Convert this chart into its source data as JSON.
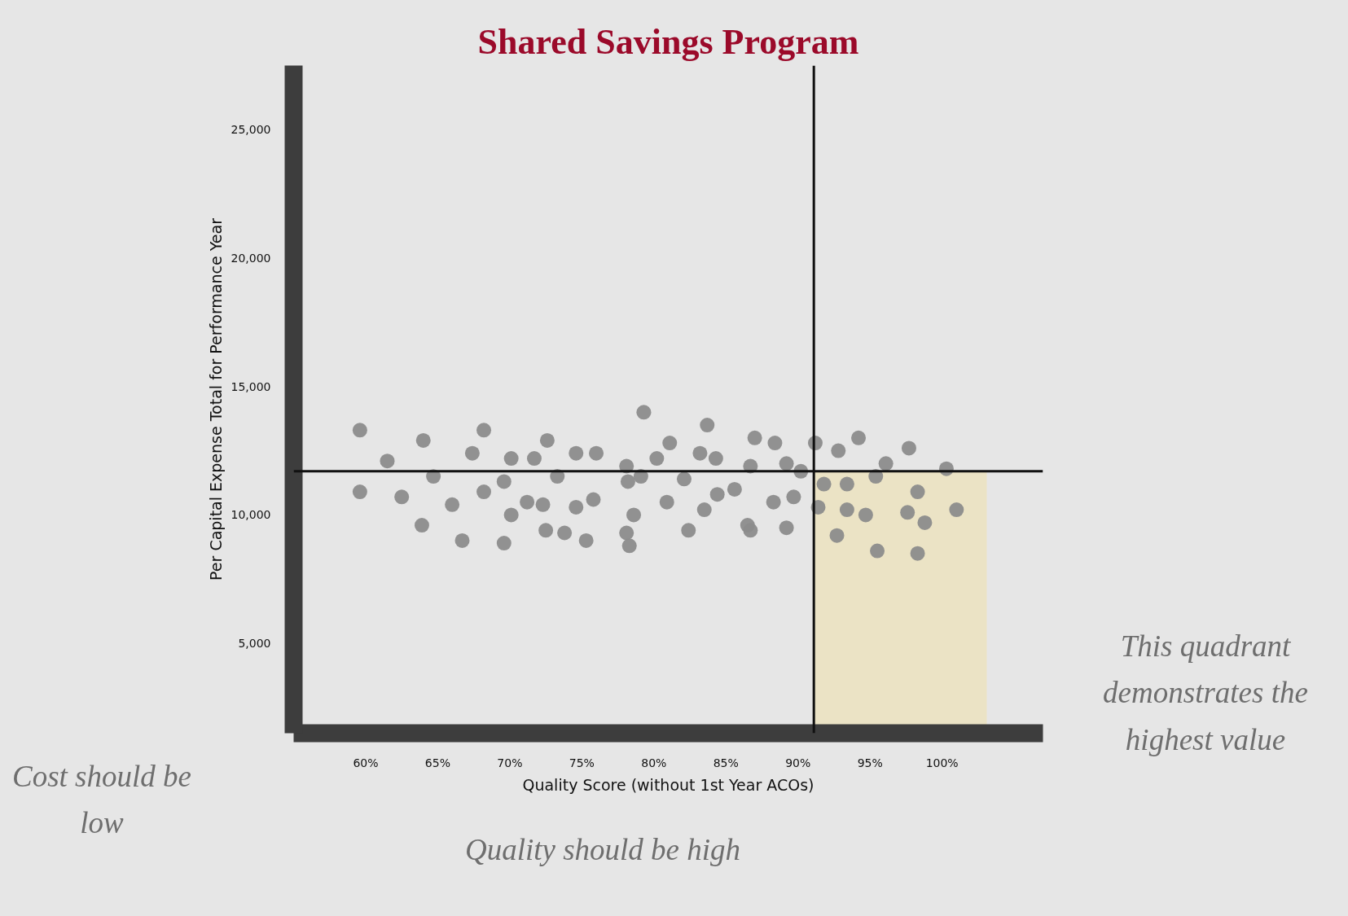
{
  "chart_data": {
    "type": "scatter",
    "title": "Shared Savings Program",
    "xlabel": "Quality Score (without 1st Year ACOs)",
    "ylabel": "Per Capital Expense Total for Performance Year",
    "xlim": [
      55,
      107
    ],
    "ylim": [
      1500,
      27500
    ],
    "xticks": [
      {
        "value": 60,
        "label": "60%"
      },
      {
        "value": 65,
        "label": "65%"
      },
      {
        "value": 70,
        "label": "70%"
      },
      {
        "value": 75,
        "label": "75%"
      },
      {
        "value": 80,
        "label": "80%"
      },
      {
        "value": 85,
        "label": "85%"
      },
      {
        "value": 90,
        "label": "90%"
      },
      {
        "value": 95,
        "label": "95%"
      },
      {
        "value": 100,
        "label": "100%"
      }
    ],
    "yticks": [
      {
        "value": 5000,
        "label": "5,000"
      },
      {
        "value": 10000,
        "label": "10,000"
      },
      {
        "value": 15000,
        "label": "15,000"
      },
      {
        "value": 20000,
        "label": "20,000"
      },
      {
        "value": 25000,
        "label": "25,000"
      }
    ],
    "marker": "circle",
    "series": [
      {
        "color": "#8c8c8c",
        "x": [
          59.6,
          59.6,
          61.5,
          62.5,
          64.0,
          63.9,
          64.7,
          66.0,
          66.7,
          67.4,
          68.2,
          68.2,
          69.6,
          69.6,
          70.1,
          70.1,
          71.2,
          71.7,
          72.3,
          72.5,
          72.6,
          73.3,
          73.8,
          74.6,
          74.6,
          75.3,
          75.8,
          76.0,
          78.1,
          78.2,
          78.1,
          78.3,
          78.6,
          79.1,
          79.3,
          80.2,
          80.9,
          81.1,
          82.1,
          82.4,
          83.2,
          83.5,
          83.7,
          84.3,
          84.4,
          85.6,
          86.7,
          86.5,
          86.7,
          87.0,
          88.3,
          88.4,
          89.2,
          89.2,
          89.7,
          90.2,
          91.2,
          91.4,
          91.8,
          92.7,
          92.8,
          93.4,
          93.4,
          94.2,
          94.7,
          95.4,
          95.5,
          96.1,
          97.6,
          97.7,
          98.3,
          98.3,
          98.8,
          100.3,
          101.0
        ],
        "values": [
          13300,
          10900,
          12100,
          10700,
          12900,
          9600,
          11500,
          10400,
          9000,
          12400,
          13300,
          10900,
          8900,
          11300,
          12200,
          10000,
          10500,
          12200,
          10400,
          9400,
          12900,
          11500,
          9300,
          10300,
          12400,
          9000,
          10600,
          12400,
          11900,
          11300,
          9300,
          8800,
          10000,
          11500,
          14000,
          12200,
          10500,
          12800,
          11400,
          9400,
          12400,
          10200,
          13500,
          12200,
          10800,
          11000,
          11900,
          9600,
          9400,
          13000,
          10500,
          12800,
          9500,
          12000,
          10700,
          11700,
          12800,
          10300,
          11200,
          9200,
          12500,
          11200,
          10200,
          13000,
          10000,
          11500,
          8600,
          12000,
          10100,
          12600,
          10900,
          8500,
          9700,
          11800,
          10200
        ]
      }
    ],
    "ref_lines": [
      {
        "axis": "y",
        "value": 11700,
        "color": "#111111",
        "line_style": "solid"
      },
      {
        "axis": "x",
        "value": 91.1,
        "color": "#111111",
        "line_style": "solid"
      }
    ],
    "bands": [
      {
        "axis": "x",
        "from": 91.1,
        "to": 103.1,
        "color": "#ebe3c5"
      }
    ],
    "annotations": [
      "This quadrant demonstrates the highest value",
      "Cost should be low",
      "Quality should be high"
    ]
  }
}
